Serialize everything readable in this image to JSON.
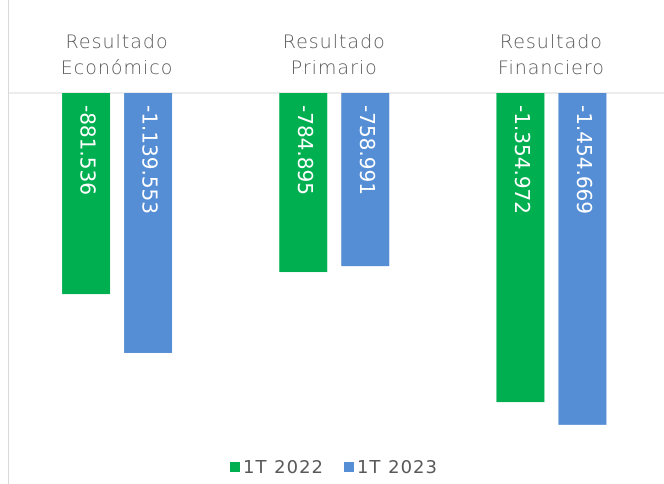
{
  "chart_data": {
    "type": "bar",
    "categories": [
      "Resultado Económico",
      "Resultado Primario",
      "Resultado Financiero"
    ],
    "series": [
      {
        "name": "1T 2022",
        "color": "#00b050",
        "values": [
          -881536,
          -784895,
          -1354972
        ],
        "value_labels": [
          "-881.536",
          "-784.895",
          "-1.354.972"
        ]
      },
      {
        "name": "1T 2023",
        "color": "#558ed5",
        "values": [
          -1139553,
          -758991,
          -1454669
        ],
        "value_labels": [
          "-1.139.553",
          "-758.991",
          "-1.454.669"
        ]
      }
    ],
    "ylim": [
      -1600000,
      0
    ],
    "legend": "bottom"
  }
}
